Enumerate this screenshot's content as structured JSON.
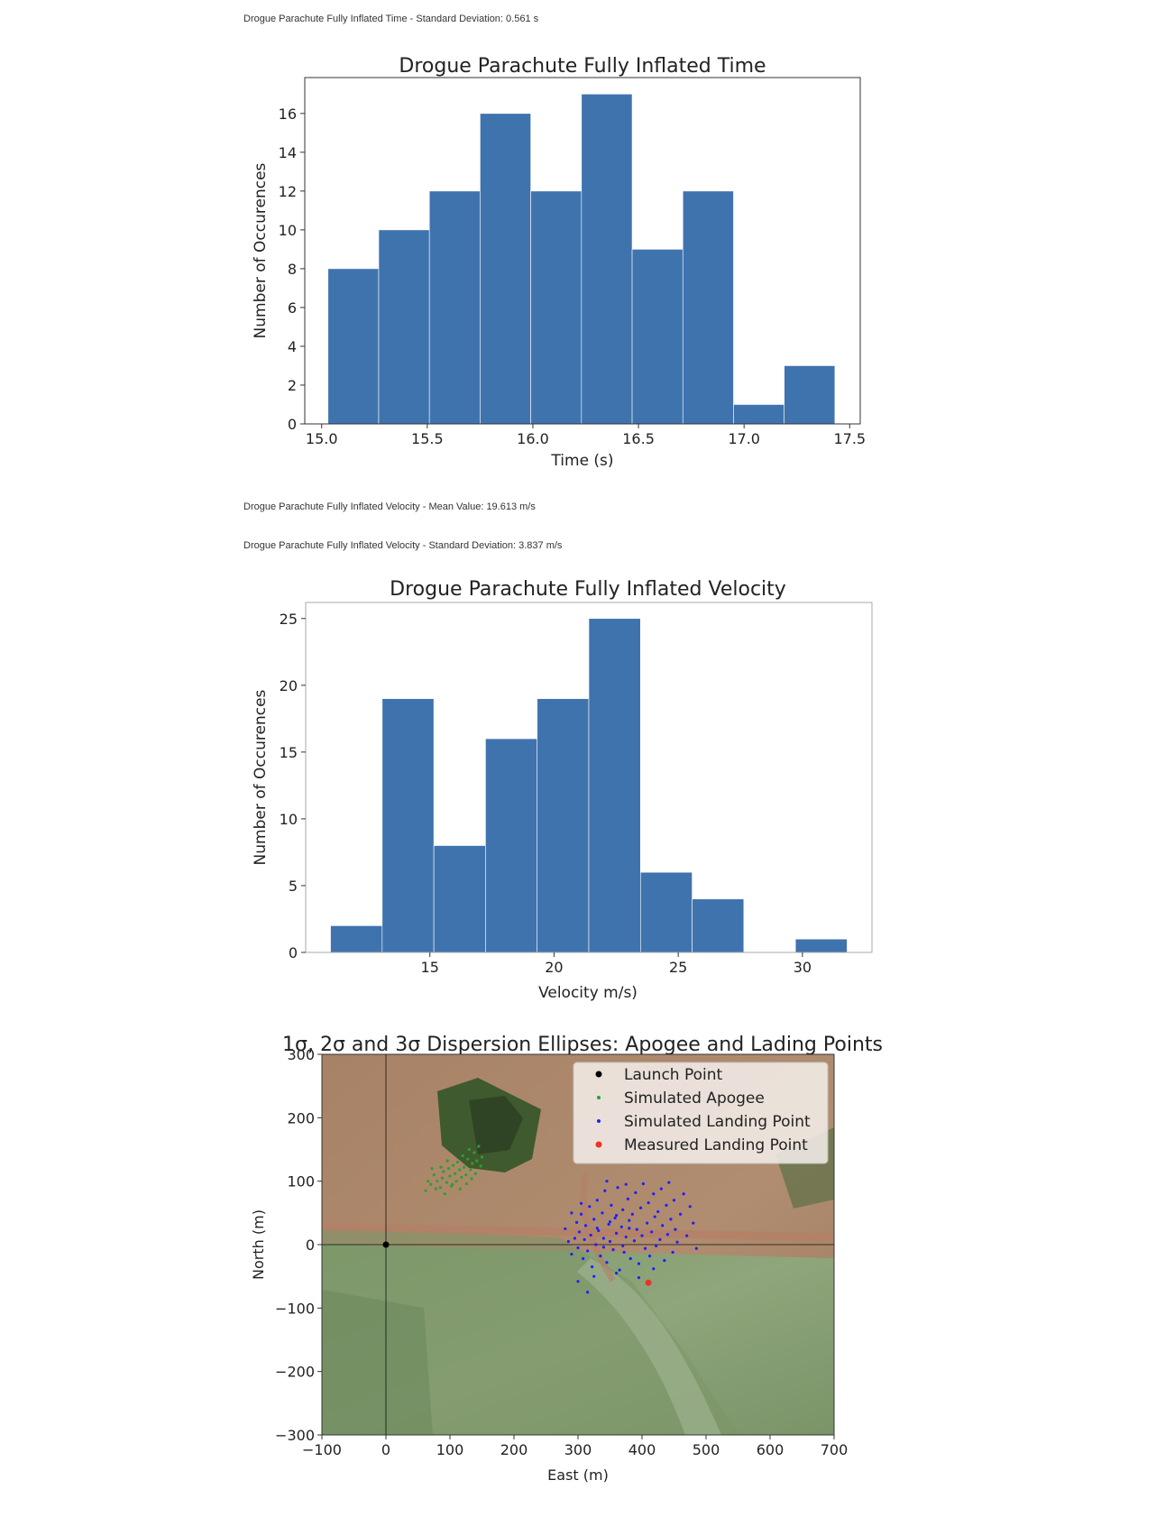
{
  "notes": {
    "time_std": "Drogue Parachute Fully Inflated Time - Standard Deviation: 0.561 s",
    "vel_mean": "Drogue Parachute Fully Inflated Velocity - Mean Value: 19.613 m/s",
    "vel_std": "Drogue Parachute Fully Inflated Velocity - Standard Deviation: 3.837 m/s"
  },
  "colors": {
    "bar": "#3f73ae",
    "launch": "#000000",
    "apogee": "#2ca02c",
    "landing": "#1f1fff",
    "measured": "#e8332b"
  },
  "chart_data": [
    {
      "type": "bar",
      "title": "Drogue Parachute Fully Inflated Time",
      "xlabel": "Time (s)",
      "ylabel": "Number of Occurences",
      "bin_edges": [
        15.03,
        15.27,
        15.51,
        15.75,
        15.99,
        16.23,
        16.47,
        16.71,
        16.95,
        17.19,
        17.43
      ],
      "values": [
        8,
        10,
        12,
        16,
        12,
        17,
        9,
        12,
        1,
        3
      ],
      "xlim": [
        14.92,
        17.55
      ],
      "ylim": [
        0,
        17.85
      ],
      "xticks": [
        15.0,
        15.5,
        16.0,
        16.5,
        17.0,
        17.5
      ],
      "xtick_labels": [
        "15.0",
        "15.5",
        "16.0",
        "16.5",
        "17.0",
        "17.5"
      ],
      "yticks": [
        0,
        2,
        4,
        6,
        8,
        10,
        12,
        14,
        16
      ],
      "ytick_labels": [
        "0",
        "2",
        "4",
        "6",
        "8",
        "10",
        "12",
        "14",
        "16"
      ]
    },
    {
      "type": "bar",
      "title": "Drogue Parachute Fully Inflated Velocity",
      "xlabel": "Velocity m/s)",
      "ylabel": "Number of Occurences",
      "bin_edges": [
        11.0,
        13.08,
        15.16,
        17.24,
        19.32,
        21.4,
        23.48,
        25.56,
        27.64,
        29.72,
        31.8
      ],
      "values": [
        2,
        19,
        8,
        16,
        19,
        25,
        6,
        4,
        0,
        1
      ],
      "xlim": [
        10.0,
        32.8
      ],
      "ylim": [
        0,
        26.2
      ],
      "xticks": [
        15,
        20,
        25,
        30
      ],
      "xtick_labels": [
        "15",
        "20",
        "25",
        "30"
      ],
      "yticks": [
        0,
        5,
        10,
        15,
        20,
        25
      ],
      "ytick_labels": [
        "0",
        "5",
        "10",
        "15",
        "20",
        "25"
      ]
    },
    {
      "type": "scatter",
      "title": "1σ, 2σ and 3σ Dispersion Ellipses: Apogee and Lading Points",
      "xlabel": "East (m)",
      "ylabel": "North (m)",
      "xlim": [
        -100,
        700
      ],
      "ylim": [
        -300,
        300
      ],
      "xticks": [
        -100,
        0,
        100,
        200,
        300,
        400,
        500,
        600,
        700
      ],
      "xtick_labels": [
        "−100",
        "0",
        "100",
        "200",
        "300",
        "400",
        "500",
        "600",
        "700"
      ],
      "yticks": [
        -300,
        -200,
        -100,
        0,
        100,
        200,
        300
      ],
      "ytick_labels": [
        "−300",
        "−200",
        "−100",
        "0",
        "100",
        "200",
        "300"
      ],
      "legend_position": "top-right",
      "series": [
        {
          "name": "Launch Point",
          "points": [
            [
              0,
              0
            ]
          ]
        },
        {
          "name": "Simulated Apogee",
          "points": [
            [
              62,
              85
            ],
            [
              70,
              95
            ],
            [
              75,
              110
            ],
            [
              80,
              100
            ],
            [
              85,
              90
            ],
            [
              88,
              105
            ],
            [
              90,
              115
            ],
            [
              95,
              98
            ],
            [
              98,
              120
            ],
            [
              100,
              108
            ],
            [
              102,
              92
            ],
            [
              105,
              125
            ],
            [
              108,
              112
            ],
            [
              110,
              100
            ],
            [
              112,
              130
            ],
            [
              115,
              118
            ],
            [
              118,
              106
            ],
            [
              120,
              140
            ],
            [
              122,
              122
            ],
            [
              125,
              110
            ],
            [
              128,
              135
            ],
            [
              130,
              150
            ],
            [
              132,
              118
            ],
            [
              135,
              128
            ],
            [
              138,
              145
            ],
            [
              140,
              112
            ],
            [
              142,
              132
            ],
            [
              145,
              155
            ],
            [
              148,
              124
            ],
            [
              150,
              138
            ],
            [
              78,
              88
            ],
            [
              92,
              80
            ],
            [
              104,
              95
            ],
            [
              116,
              88
            ],
            [
              86,
              122
            ],
            [
              96,
              132
            ],
            [
              126,
              96
            ],
            [
              134,
              104
            ],
            [
              66,
              100
            ],
            [
              72,
              120
            ]
          ]
        },
        {
          "name": "Simulated Landing Point",
          "points": [
            [
              280,
              25
            ],
            [
              285,
              5
            ],
            [
              290,
              -15
            ],
            [
              295,
              10
            ],
            [
              298,
              35
            ],
            [
              300,
              -5
            ],
            [
              302,
              20
            ],
            [
              305,
              48
            ],
            [
              308,
              -22
            ],
            [
              310,
              8
            ],
            [
              312,
              30
            ],
            [
              315,
              -10
            ],
            [
              318,
              60
            ],
            [
              320,
              15
            ],
            [
              322,
              -35
            ],
            [
              325,
              40
            ],
            [
              328,
              0
            ],
            [
              330,
              70
            ],
            [
              332,
              22
            ],
            [
              335,
              -18
            ],
            [
              338,
              50
            ],
            [
              340,
              10
            ],
            [
              342,
              85
            ],
            [
              345,
              -28
            ],
            [
              348,
              32
            ],
            [
              350,
              5
            ],
            [
              352,
              62
            ],
            [
              355,
              -8
            ],
            [
              358,
              42
            ],
            [
              360,
              18
            ],
            [
              362,
              90
            ],
            [
              365,
              -40
            ],
            [
              368,
              28
            ],
            [
              370,
              55
            ],
            [
              372,
              -12
            ],
            [
              375,
              12
            ],
            [
              378,
              72
            ],
            [
              380,
              38
            ],
            [
              382,
              -22
            ],
            [
              385,
              48
            ],
            [
              388,
              6
            ],
            [
              390,
              82
            ],
            [
              392,
              24
            ],
            [
              395,
              -30
            ],
            [
              398,
              58
            ],
            [
              400,
              14
            ],
            [
              402,
              96
            ],
            [
              405,
              -6
            ],
            [
              408,
              34
            ],
            [
              410,
              66
            ],
            [
              412,
              -18
            ],
            [
              415,
              20
            ],
            [
              418,
              80
            ],
            [
              420,
              44
            ],
            [
              422,
              -2
            ],
            [
              425,
              52
            ],
            [
              428,
              8
            ],
            [
              430,
              88
            ],
            [
              432,
              30
            ],
            [
              435,
              -25
            ],
            [
              438,
              62
            ],
            [
              440,
              16
            ],
            [
              442,
              98
            ],
            [
              445,
              40
            ],
            [
              448,
              -12
            ],
            [
              450,
              70
            ],
            [
              452,
              24
            ],
            [
              455,
              4
            ],
            [
              460,
              48
            ],
            [
              465,
              80
            ],
            [
              470,
              14
            ],
            [
              475,
              60
            ],
            [
              480,
              34
            ],
            [
              485,
              -6
            ],
            [
              300,
              -58
            ],
            [
              315,
              -75
            ],
            [
              290,
              50
            ],
            [
              305,
              65
            ],
            [
              325,
              -50
            ],
            [
              345,
              100
            ],
            [
              360,
              -45
            ],
            [
              375,
              95
            ],
            [
              395,
              -52
            ],
            [
              418,
              -38
            ],
            [
              330,
              26
            ],
            [
              340,
              -4
            ],
            [
              350,
              36
            ],
            [
              360,
              46
            ],
            [
              370,
              -2
            ],
            [
              380,
              26
            ]
          ]
        },
        {
          "name": "Measured Landing Point",
          "points": [
            [
              410,
              -60
            ]
          ]
        }
      ]
    }
  ]
}
